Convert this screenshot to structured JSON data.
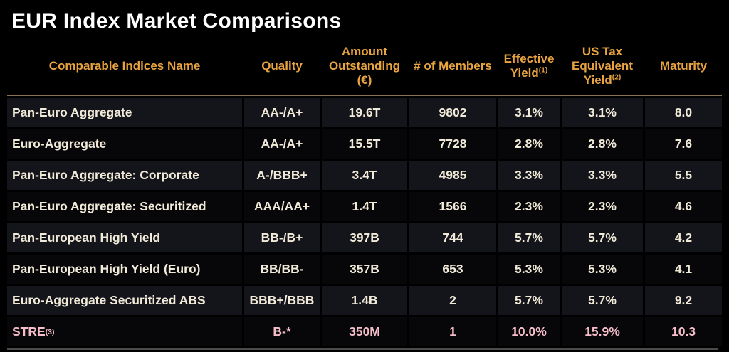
{
  "title": "EUR Index Market Comparisons",
  "colors": {
    "background": "#000000",
    "title": "#ffffff",
    "header": "#e9a43f",
    "body_text": "#f1ead8",
    "highlight_text": "#f5bdc9",
    "row_odd": "#14141b",
    "row_even": "#07070a",
    "header_rule": "#8a7353",
    "bottom_rule": "#4b4b4b"
  },
  "table": {
    "columns": [
      {
        "id": "name",
        "label": "Comparable Indices Name",
        "sup": ""
      },
      {
        "id": "quality",
        "label": "Quality",
        "sup": ""
      },
      {
        "id": "amount",
        "label": "Amount Outstanding (€)",
        "sup": ""
      },
      {
        "id": "members",
        "label": "# of Members",
        "sup": ""
      },
      {
        "id": "effective",
        "label": "Effective Yield",
        "sup": "(1)"
      },
      {
        "id": "ustax",
        "label": "US Tax Equivalent Yield",
        "sup": "(2)"
      },
      {
        "id": "maturity",
        "label": "Maturity",
        "sup": ""
      }
    ],
    "rows": [
      {
        "name": "Pan-Euro Aggregate",
        "sup": "",
        "quality": "AA-/A+",
        "amount": "19.6T",
        "members": "9802",
        "effective": "3.1%",
        "ustax": "3.1%",
        "maturity": "8.0",
        "highlight": false
      },
      {
        "name": "Euro-Aggregate",
        "sup": "",
        "quality": "AA-/A+",
        "amount": "15.5T",
        "members": "7728",
        "effective": "2.8%",
        "ustax": "2.8%",
        "maturity": "7.6",
        "highlight": false
      },
      {
        "name": "Pan-Euro Aggregate: Corporate",
        "sup": "",
        "quality": "A-/BBB+",
        "amount": "3.4T",
        "members": "4985",
        "effective": "3.3%",
        "ustax": "3.3%",
        "maturity": "5.5",
        "highlight": false
      },
      {
        "name": "Pan-Euro Aggregate: Securitized",
        "sup": "",
        "quality": "AAA/AA+",
        "amount": "1.4T",
        "members": "1566",
        "effective": "2.3%",
        "ustax": "2.3%",
        "maturity": "4.6",
        "highlight": false
      },
      {
        "name": "Pan-European High Yield",
        "sup": "",
        "quality": "BB-/B+",
        "amount": "397B",
        "members": "744",
        "effective": "5.7%",
        "ustax": "5.7%",
        "maturity": "4.2",
        "highlight": false
      },
      {
        "name": "Pan-European High Yield (Euro)",
        "sup": "",
        "quality": "BB/BB-",
        "amount": "357B",
        "members": "653",
        "effective": "5.3%",
        "ustax": "5.3%",
        "maturity": "4.1",
        "highlight": false
      },
      {
        "name": "Euro-Aggregate Securitized ABS",
        "sup": "",
        "quality": "BBB+/BBB",
        "amount": "1.4B",
        "members": "2",
        "effective": "5.7%",
        "ustax": "5.7%",
        "maturity": "9.2",
        "highlight": false
      },
      {
        "name": "STRE",
        "sup": "(3)",
        "quality": "B-*",
        "amount": "350M",
        "members": "1",
        "effective": "10.0%",
        "ustax": "15.9%",
        "maturity": "10.3",
        "highlight": true
      }
    ]
  },
  "chart_data": {
    "type": "table",
    "title": "EUR Index Market Comparisons",
    "columns": [
      "Comparable Indices Name",
      "Quality",
      "Amount Outstanding (€)",
      "# of Members",
      "Effective Yield(1)",
      "US Tax Equivalent Yield(2)",
      "Maturity"
    ],
    "rows": [
      [
        "Pan-Euro Aggregate",
        "AA-/A+",
        "19.6T",
        9802,
        "3.1%",
        "3.1%",
        8.0
      ],
      [
        "Euro-Aggregate",
        "AA-/A+",
        "15.5T",
        7728,
        "2.8%",
        "2.8%",
        7.6
      ],
      [
        "Pan-Euro Aggregate: Corporate",
        "A-/BBB+",
        "3.4T",
        4985,
        "3.3%",
        "3.3%",
        5.5
      ],
      [
        "Pan-Euro Aggregate: Securitized",
        "AAA/AA+",
        "1.4T",
        1566,
        "2.3%",
        "2.3%",
        4.6
      ],
      [
        "Pan-European High Yield",
        "BB-/B+",
        "397B",
        744,
        "5.7%",
        "5.7%",
        4.2
      ],
      [
        "Pan-European High Yield (Euro)",
        "BB/BB-",
        "357B",
        653,
        "5.3%",
        "5.3%",
        4.1
      ],
      [
        "Euro-Aggregate Securitized ABS",
        "BBB+/BBB",
        "1.4B",
        2,
        "5.7%",
        "5.7%",
        9.2
      ],
      [
        "STRE(3)",
        "B-*",
        "350M",
        1,
        "10.0%",
        "15.9%",
        10.3
      ]
    ],
    "notes": "Row STRE(3) highlighted in pink; footnote markers (1)(2)(3) shown as superscripts; headers in amber on black background"
  }
}
